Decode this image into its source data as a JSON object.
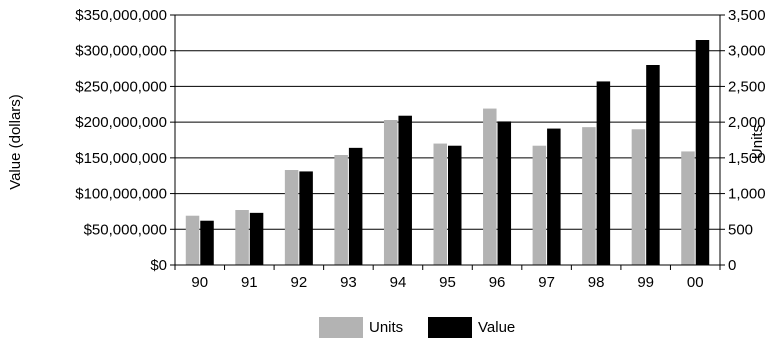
{
  "chart_data": {
    "type": "bar",
    "categories": [
      "90",
      "91",
      "92",
      "93",
      "94",
      "95",
      "96",
      "97",
      "98",
      "99",
      "00"
    ],
    "series": [
      {
        "name": "Units",
        "axis": "right",
        "color": "#b3b3b3",
        "values": [
          690,
          770,
          1330,
          1540,
          2030,
          1700,
          2190,
          1670,
          1930,
          1900,
          1590
        ]
      },
      {
        "name": "Value",
        "axis": "left",
        "color": "#000000",
        "values": [
          62000000,
          73000000,
          131000000,
          164000000,
          209000000,
          167000000,
          201000000,
          191000000,
          257000000,
          280000000,
          315000000
        ]
      }
    ],
    "ylabel": "Value (dollars)",
    "y2label": "Units",
    "xlabel": "",
    "ylim": [
      0,
      350000000
    ],
    "y2lim": [
      0,
      3500
    ],
    "yticks": [
      "$0",
      "$50,000,000",
      "$100,000,000",
      "$150,000,000",
      "$200,000,000",
      "$250,000,000",
      "$300,000,000",
      "$350,000,000"
    ],
    "y2ticks": [
      "0",
      "500",
      "1,000",
      "1,500",
      "2,000",
      "2,500",
      "3,000",
      "3,500"
    ],
    "grid": true,
    "legend": "bottom"
  }
}
